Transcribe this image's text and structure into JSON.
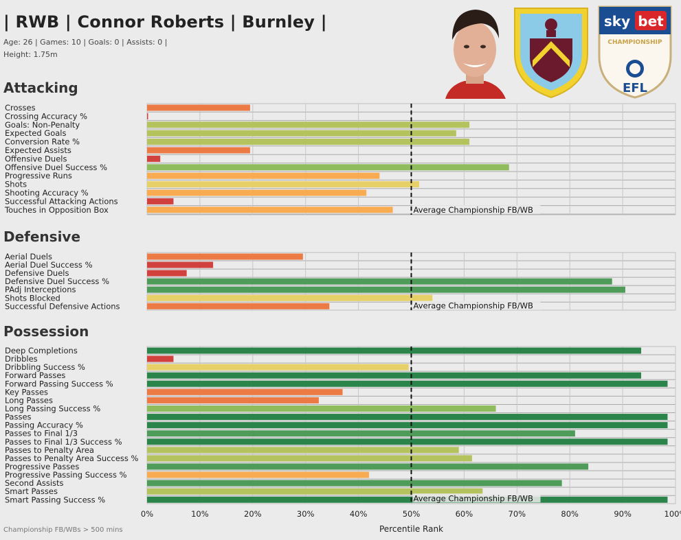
{
  "header": {
    "title": "| RWB | Connor Roberts | Burnley |",
    "meta_line1": "Age: 26 | Games: 10 | Goals: 0 | Assists: 0 |",
    "meta_line2": "Height: 1.75m"
  },
  "badges": {
    "sponsor_sky": "sky",
    "sponsor_bet": "bet",
    "league": "CHAMPIONSHIP",
    "federation": "EFL"
  },
  "footer": {
    "note": "Championship FB/WBs  > 500 mins",
    "xlabel": "Percentile Rank"
  },
  "chart_data": {
    "type": "bar",
    "orientation": "horizontal",
    "xlabel": "Percentile Rank",
    "xlim": [
      0,
      100
    ],
    "ticks": [
      "0%",
      "10%",
      "20%",
      "30%",
      "40%",
      "50%",
      "60%",
      "70%",
      "80%",
      "90%",
      "100%"
    ],
    "reference_line": {
      "value": 50,
      "label": "Average Championship FB/WB"
    },
    "grid": true,
    "colors": {
      "red": "#d1423e",
      "orange": "#ec7a45",
      "lightorange": "#f8ab50",
      "yellow": "#e8d068",
      "lime": "#b5c35f",
      "lightgreen": "#8fbd5e",
      "green": "#4f9c5a",
      "darkgreen": "#2b8449"
    },
    "sections": [
      {
        "title": "Attacking",
        "metrics": [
          {
            "label": "Crosses",
            "value": 19.5,
            "color": "orange"
          },
          {
            "label": "Crossing Accuracy %",
            "value": 0,
            "color": "red"
          },
          {
            "label": "Goals: Non-Penalty",
            "value": 61,
            "color": "lime"
          },
          {
            "label": "Expected Goals",
            "value": 58.5,
            "color": "lime"
          },
          {
            "label": "Conversion Rate %",
            "value": 61,
            "color": "lime"
          },
          {
            "label": "Expected Assists",
            "value": 19.5,
            "color": "orange"
          },
          {
            "label": "Offensive Duels",
            "value": 2.5,
            "color": "red"
          },
          {
            "label": "Offensive Duel Success %",
            "value": 68.5,
            "color": "lightgreen"
          },
          {
            "label": "Progressive Runs",
            "value": 44,
            "color": "lightorange"
          },
          {
            "label": "Shots",
            "value": 51.5,
            "color": "yellow"
          },
          {
            "label": "Shooting Accuracy %",
            "value": 41.5,
            "color": "lightorange"
          },
          {
            "label": "Successful Attacking Actions",
            "value": 5,
            "color": "red"
          },
          {
            "label": "Touches in Opposition Box",
            "value": 46.5,
            "color": "lightorange"
          }
        ]
      },
      {
        "title": "Defensive",
        "metrics": [
          {
            "label": "Aerial Duels",
            "value": 29.5,
            "color": "orange"
          },
          {
            "label": "Aerial Duel Success %",
            "value": 12.5,
            "color": "red"
          },
          {
            "label": "Defensive Duels",
            "value": 7.5,
            "color": "red"
          },
          {
            "label": "Defensive Duel Success %",
            "value": 88,
            "color": "green"
          },
          {
            "label": "PAdj Interceptions",
            "value": 90.5,
            "color": "green"
          },
          {
            "label": "Shots Blocked",
            "value": 54,
            "color": "yellow"
          },
          {
            "label": "Successful Defensive Actions",
            "value": 34.5,
            "color": "orange"
          }
        ]
      },
      {
        "title": "Possession",
        "metrics": [
          {
            "label": "Deep Completions",
            "value": 93.5,
            "color": "darkgreen"
          },
          {
            "label": "Dribbles",
            "value": 5,
            "color": "red"
          },
          {
            "label": "Dribbling Success %",
            "value": 49.5,
            "color": "yellow"
          },
          {
            "label": "Forward Passes",
            "value": 93.5,
            "color": "darkgreen"
          },
          {
            "label": "Forward Passing Success %",
            "value": 98.5,
            "color": "darkgreen"
          },
          {
            "label": "Key Passes",
            "value": 37,
            "color": "orange"
          },
          {
            "label": "Long Passes",
            "value": 32.5,
            "color": "orange"
          },
          {
            "label": "Long Passing Success %",
            "value": 66,
            "color": "lightgreen"
          },
          {
            "label": "Passes",
            "value": 98.5,
            "color": "darkgreen"
          },
          {
            "label": "Passing Accuracy %",
            "value": 98.5,
            "color": "darkgreen"
          },
          {
            "label": "Passes to Final 1/3",
            "value": 81,
            "color": "green"
          },
          {
            "label": "Passes to Final 1/3 Success %",
            "value": 98.5,
            "color": "darkgreen"
          },
          {
            "label": "Passes to Penalty Area",
            "value": 59,
            "color": "lime"
          },
          {
            "label": "Passes to Penalty Area Success %",
            "value": 61.5,
            "color": "lime"
          },
          {
            "label": "Progressive Passes",
            "value": 83.5,
            "color": "green"
          },
          {
            "label": "Progressive Passing Success %",
            "value": 42,
            "color": "lightorange"
          },
          {
            "label": "Second Assists",
            "value": 78.5,
            "color": "green"
          },
          {
            "label": "Smart Passes",
            "value": 63.5,
            "color": "lime"
          },
          {
            "label": "Smart Passing Success %",
            "value": 98.5,
            "color": "darkgreen"
          }
        ]
      }
    ]
  }
}
